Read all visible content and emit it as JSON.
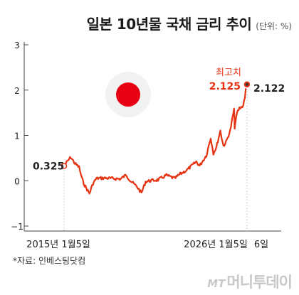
{
  "title": "일본 10년물 국채 금리 추이",
  "unit": "(단위: %)",
  "source": "*자료: 인베스팅닷컴",
  "watermark": "머니투데이",
  "watermark_mark": "MT",
  "colors": {
    "line": "#e63312",
    "flag_red": "#e60012",
    "axis": "#444444",
    "grid": "#d9d9d9",
    "text": "#222222"
  },
  "annotations": {
    "start_value": "0.325",
    "peak_label": "최고치",
    "peak_value": "2.125",
    "end_value": "2.122"
  },
  "chart_data": {
    "type": "line",
    "title": "일본 10년물 국채 금리 추이",
    "unit": "%",
    "yticks": [
      "3",
      "2",
      "1",
      "0",
      "−1"
    ],
    "ylim": [
      -1,
      3
    ],
    "xlim": [
      "2015-01-05",
      "2026-01-06"
    ],
    "xticks": [
      "2015년 1월5일",
      "2026년 1월5일",
      "6일"
    ],
    "grid": false,
    "series": [
      {
        "values": [
          [
            "2015-01-05",
            0.325
          ],
          [
            "2015-03-01",
            0.4
          ],
          [
            "2015-06-01",
            0.52
          ],
          [
            "2015-09-01",
            0.38
          ],
          [
            "2015-12-01",
            0.3
          ],
          [
            "2016-02-01",
            0.05
          ],
          [
            "2016-04-01",
            -0.1
          ],
          [
            "2016-07-15",
            -0.28
          ],
          [
            "2016-10-01",
            -0.06
          ],
          [
            "2016-12-15",
            0.05
          ],
          [
            "2017-06-01",
            0.06
          ],
          [
            "2017-12-01",
            0.05
          ],
          [
            "2018-06-01",
            0.04
          ],
          [
            "2018-10-01",
            0.13
          ],
          [
            "2019-01-01",
            0.0
          ],
          [
            "2019-06-01",
            -0.14
          ],
          [
            "2019-09-01",
            -0.27
          ],
          [
            "2019-12-01",
            -0.02
          ],
          [
            "2020-03-15",
            0.0
          ],
          [
            "2020-09-01",
            0.02
          ],
          [
            "2021-03-01",
            0.12
          ],
          [
            "2021-09-01",
            0.05
          ],
          [
            "2022-01-01",
            0.15
          ],
          [
            "2022-06-01",
            0.24
          ],
          [
            "2022-12-20",
            0.42
          ],
          [
            "2023-03-01",
            0.33
          ],
          [
            "2023-07-28",
            0.56
          ],
          [
            "2023-10-31",
            0.95
          ],
          [
            "2023-12-29",
            0.61
          ],
          [
            "2024-03-01",
            0.73
          ],
          [
            "2024-05-29",
            1.1
          ],
          [
            "2024-08-05",
            0.77
          ],
          [
            "2024-10-01",
            0.85
          ],
          [
            "2024-12-31",
            1.1
          ],
          [
            "2025-03-27",
            1.58
          ],
          [
            "2025-04-09",
            1.18
          ],
          [
            "2025-06-01",
            1.5
          ],
          [
            "2025-07-22",
            1.6
          ],
          [
            "2025-09-01",
            1.62
          ],
          [
            "2025-10-15",
            1.67
          ],
          [
            "2025-11-20",
            1.85
          ],
          [
            "2025-12-22",
            2.1
          ],
          [
            "2026-01-05",
            2.125
          ],
          [
            "2026-01-06",
            2.122
          ]
        ]
      }
    ]
  }
}
